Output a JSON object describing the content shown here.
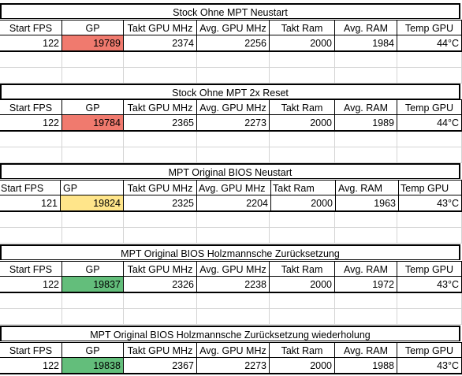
{
  "blocks": [
    {
      "title": "Stock Ohne MPT Neustart",
      "headers": [
        "Start FPS",
        "GP",
        "Takt GPU MHz",
        "Avg.  GPU MHz",
        "Takt Ram",
        "Avg. RAM",
        "Temp GPU"
      ],
      "values": [
        "122",
        "19789",
        "2374",
        "2256",
        "2000",
        "1984",
        "44°C"
      ],
      "gp_color": "#f07a6e"
    },
    {
      "title": "Stock Ohne MPT 2x Reset",
      "headers": [
        "Start FPS",
        "GP",
        "Takt GPU MHz",
        "Avg.  GPU MHz",
        "Takt Ram",
        "Avg. RAM",
        "Temp GPU"
      ],
      "values": [
        "122",
        "19784",
        "2365",
        "2273",
        "2000",
        "1989",
        "44°C"
      ],
      "gp_color": "#f07a6e"
    },
    {
      "title": "MPT Original BIOS Neustart",
      "headers": [
        "Start FPS",
        "GP",
        "Takt GPU MHz",
        "Avg.  GPU MHz",
        "Takt Ram",
        "Avg. RAM",
        "Temp GPU"
      ],
      "values": [
        "121",
        "19824",
        "2325",
        "2204",
        "2000",
        "1963",
        "43°C"
      ],
      "gp_color": "#ffe58a"
    },
    {
      "title": "MPT Original BIOS Holzmannsche Zurücksetzung",
      "headers": [
        "Start FPS",
        "GP",
        "Takt GPU MHz",
        "Avg.  GPU MHz",
        "Takt Ram",
        "Avg. RAM",
        "Temp GPU"
      ],
      "values": [
        "122",
        "19837",
        "2326",
        "2238",
        "2000",
        "1972",
        "43°C"
      ],
      "gp_color": "#63be7b"
    },
    {
      "title": "MPT Original BIOS Holzmannsche Zurücksetzung wiederholung",
      "headers": [
        "Start FPS",
        "GP",
        "Takt GPU MHz",
        "Avg.  GPU MHz",
        "Takt Ram",
        "Avg. RAM",
        "Temp GPU"
      ],
      "values": [
        "122",
        "19838",
        "2367",
        "2273",
        "2000",
        "1988",
        "43°C"
      ],
      "gp_color": "#63be7b"
    }
  ]
}
